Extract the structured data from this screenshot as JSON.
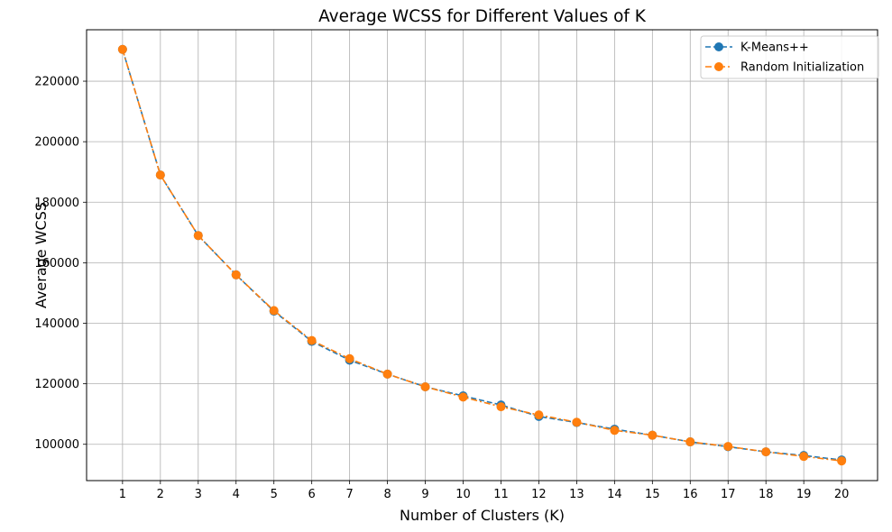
{
  "chart_data": {
    "type": "line",
    "title": "Average WCSS for Different Values of K",
    "xlabel": "Number of Clusters (K)",
    "ylabel": "Average WCSS",
    "x": [
      1,
      2,
      3,
      4,
      5,
      6,
      7,
      8,
      9,
      10,
      11,
      12,
      13,
      14,
      15,
      16,
      17,
      18,
      19,
      20
    ],
    "xlim": [
      0.05,
      20.95
    ],
    "ylim": [
      88000,
      237000
    ],
    "yticks": [
      100000,
      120000,
      140000,
      160000,
      180000,
      200000,
      220000
    ],
    "grid": true,
    "legend_position": "top-right",
    "series": [
      {
        "name": "K-Means++",
        "color": "#1f77b4",
        "linestyle": "dashed",
        "marker": "circle",
        "values": [
          230500,
          189000,
          169000,
          156000,
          144000,
          134000,
          127800,
          123200,
          119000,
          116000,
          113000,
          109200,
          107200,
          105000,
          103000,
          100800,
          99200,
          97500,
          96300,
          94800
        ]
      },
      {
        "name": "Random Initialization",
        "color": "#ff7f0e",
        "linestyle": "dashdot",
        "marker": "circle",
        "values": [
          230500,
          189000,
          169000,
          156000,
          144200,
          134300,
          128300,
          123200,
          119000,
          115600,
          112400,
          109700,
          107300,
          104600,
          103000,
          100800,
          99300,
          97500,
          96000,
          94500
        ]
      }
    ]
  }
}
